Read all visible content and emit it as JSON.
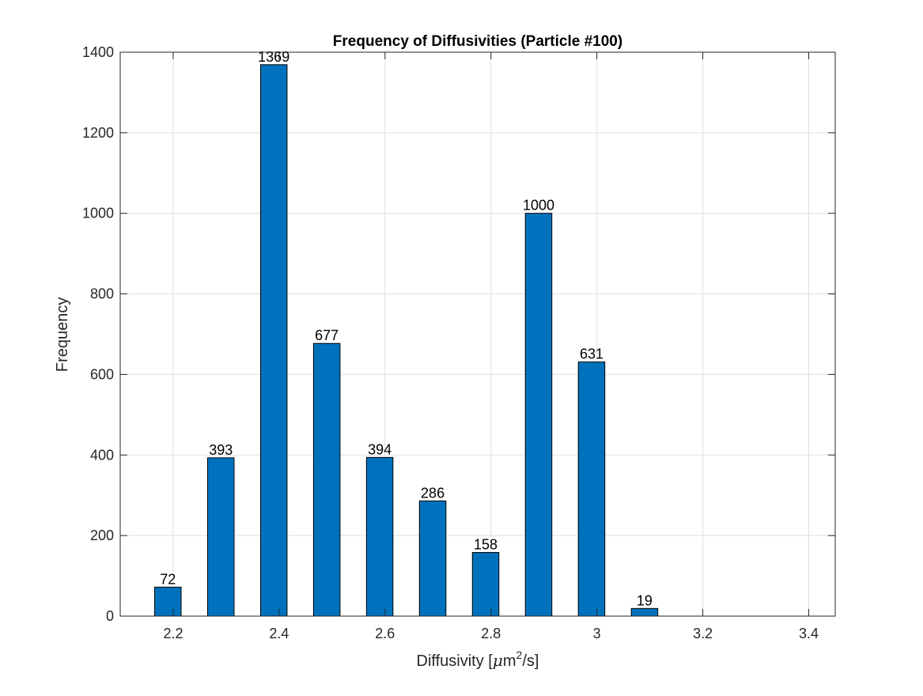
{
  "chart_data": {
    "type": "bar",
    "title": "Frequency of Diffusivities (Particle #100)",
    "xlabel": "Diffusivity [μm²/s]",
    "xlabel_parts": {
      "prefix": "Diffusivity [",
      "mu": "μ",
      "base": "m",
      "superscript": "2",
      "suffix": "/s]"
    },
    "ylabel": "Frequency",
    "xlim": [
      2.1,
      3.45
    ],
    "ylim": [
      0,
      1400
    ],
    "xticks": [
      2.2,
      2.4,
      2.6,
      2.8,
      3.0,
      3.2,
      3.4
    ],
    "xtick_labels": [
      "2.2",
      "2.4",
      "2.6",
      "2.8",
      "3",
      "3.2",
      "3.4"
    ],
    "yticks": [
      0,
      200,
      400,
      600,
      800,
      1000,
      1200,
      1400
    ],
    "ytick_labels": [
      "0",
      "200",
      "400",
      "600",
      "800",
      "1000",
      "1200",
      "1400"
    ],
    "bin_width": 0.1,
    "bar_width_data": 0.05,
    "x": [
      2.19,
      2.29,
      2.39,
      2.49,
      2.59,
      2.69,
      2.79,
      2.89,
      2.99,
      3.09
    ],
    "bar_centers": [
      2.19,
      2.29,
      2.39,
      2.49,
      2.59,
      2.69,
      2.79,
      2.89,
      2.99,
      3.09
    ],
    "values": [
      72,
      393,
      1369,
      677,
      394,
      286,
      158,
      1000,
      631,
      19
    ],
    "value_labels": [
      "72",
      "393",
      "1369",
      "677",
      "394",
      "286",
      "158",
      "1000",
      "631",
      "19"
    ],
    "bar_color": "#0072BD",
    "grid": true
  }
}
